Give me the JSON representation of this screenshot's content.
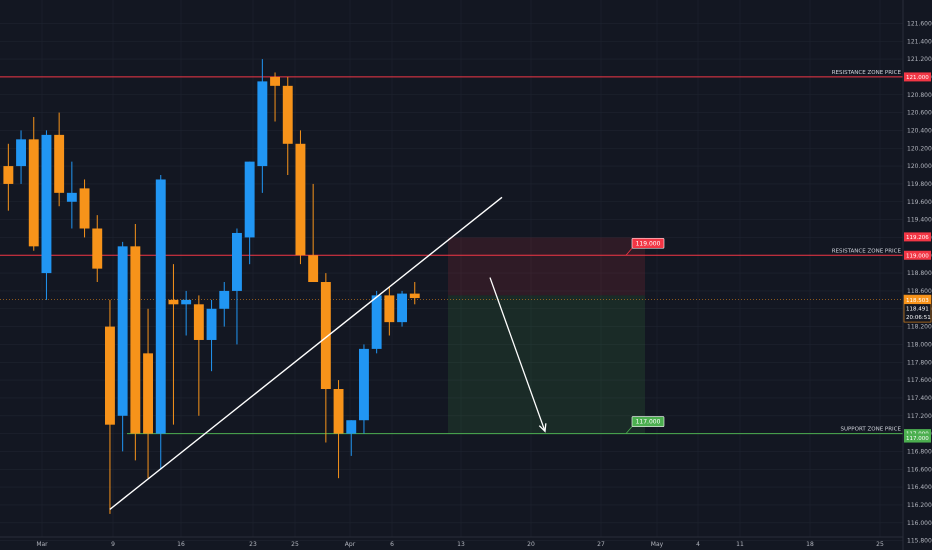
{
  "chart_data": {
    "type": "candlestick",
    "y_axis": {
      "min": 115.7,
      "max": 121.7,
      "ticks": [
        "121.600",
        "121.400",
        "121.200",
        "121.000",
        "120.800",
        "120.600",
        "120.400",
        "120.200",
        "120.000",
        "119.800",
        "119.600",
        "119.400",
        "119.200",
        "119.000",
        "118.800",
        "118.600",
        "118.400",
        "118.200",
        "118.000",
        "117.800",
        "117.600",
        "117.400",
        "117.200",
        "117.000",
        "116.800",
        "116.600",
        "116.400",
        "116.200",
        "116.000",
        "115.800"
      ]
    },
    "x_axis": {
      "labels": [
        "Mar",
        "9",
        "16",
        "23",
        "25",
        "Apr",
        "6",
        "13",
        "20",
        "27",
        "May",
        "4",
        "11",
        "18",
        "25"
      ]
    },
    "candles": [
      {
        "o": 120.0,
        "h": 120.25,
        "l": 119.5,
        "c": 119.8
      },
      {
        "o": 120.0,
        "h": 120.4,
        "l": 119.8,
        "c": 120.3
      },
      {
        "o": 120.3,
        "h": 120.55,
        "l": 119.05,
        "c": 119.1
      },
      {
        "o": 118.8,
        "h": 120.4,
        "l": 118.5,
        "c": 120.35
      },
      {
        "o": 120.35,
        "h": 120.6,
        "l": 119.55,
        "c": 119.7
      },
      {
        "o": 119.6,
        "h": 120.05,
        "l": 119.3,
        "c": 119.7
      },
      {
        "o": 119.75,
        "h": 119.85,
        "l": 119.2,
        "c": 119.3
      },
      {
        "o": 119.3,
        "h": 119.45,
        "l": 118.7,
        "c": 118.85
      },
      {
        "o": 118.2,
        "h": 118.5,
        "l": 116.1,
        "c": 117.1
      },
      {
        "o": 117.2,
        "h": 119.15,
        "l": 116.8,
        "c": 119.1
      },
      {
        "o": 119.1,
        "h": 119.35,
        "l": 116.7,
        "c": 117.0
      },
      {
        "o": 117.9,
        "h": 118.4,
        "l": 116.5,
        "c": 117.0
      },
      {
        "o": 117.0,
        "h": 119.9,
        "l": 116.6,
        "c": 119.85
      },
      {
        "o": 118.5,
        "h": 118.9,
        "l": 117.1,
        "c": 118.45
      },
      {
        "o": 118.45,
        "h": 118.6,
        "l": 118.1,
        "c": 118.5
      },
      {
        "o": 118.45,
        "h": 118.55,
        "l": 117.2,
        "c": 118.05
      },
      {
        "o": 118.05,
        "h": 118.5,
        "l": 117.7,
        "c": 118.4
      },
      {
        "o": 118.4,
        "h": 118.7,
        "l": 118.2,
        "c": 118.6
      },
      {
        "o": 118.6,
        "h": 119.3,
        "l": 118.0,
        "c": 119.25
      },
      {
        "o": 119.2,
        "h": 120.05,
        "l": 118.9,
        "c": 120.05
      },
      {
        "o": 120.0,
        "h": 121.2,
        "l": 119.7,
        "c": 120.95
      },
      {
        "o": 121.0,
        "h": 121.05,
        "l": 120.5,
        "c": 120.9
      },
      {
        "o": 120.9,
        "h": 121.0,
        "l": 119.9,
        "c": 120.25
      },
      {
        "o": 120.25,
        "h": 120.4,
        "l": 118.9,
        "c": 119.0
      },
      {
        "o": 119.0,
        "h": 119.8,
        "l": 118.7,
        "c": 118.7
      },
      {
        "o": 118.7,
        "h": 118.8,
        "l": 116.9,
        "c": 117.5
      },
      {
        "o": 117.5,
        "h": 117.6,
        "l": 116.5,
        "c": 117.0
      },
      {
        "o": 117.0,
        "h": 117.15,
        "l": 116.75,
        "c": 117.15
      },
      {
        "o": 117.15,
        "h": 118.0,
        "l": 117.0,
        "c": 117.95
      },
      {
        "o": 117.95,
        "h": 118.6,
        "l": 117.9,
        "c": 118.55
      },
      {
        "o": 118.55,
        "h": 118.65,
        "l": 118.1,
        "c": 118.25
      },
      {
        "o": 118.25,
        "h": 118.6,
        "l": 118.2,
        "c": 118.57
      },
      {
        "o": 118.57,
        "h": 118.7,
        "l": 118.45,
        "c": 118.52
      }
    ],
    "levels": [
      {
        "price": 121.0,
        "label": "RESISTANCE ZONE PRICE",
        "tag": "121.000",
        "color": "#f23645"
      },
      {
        "price": 119.0,
        "label": "RESISTANCE ZONE PRICE",
        "tag": "119.000",
        "color": "#f23645"
      },
      {
        "price": 117.0,
        "label": "SUPPORT ZONE PRICE",
        "tag": "117.000",
        "color": "#4caf50"
      }
    ],
    "current_price": {
      "price": 118.503,
      "label": "118.503",
      "color": "#f7931a"
    },
    "axis_tags": [
      {
        "price": 119.206,
        "text": "119.206",
        "color": "#f23645"
      },
      {
        "price": 116.95,
        "text": "117.000",
        "color": "#4caf50"
      }
    ],
    "price_tag_stack": {
      "lines": [
        "118.503",
        "118.491",
        "20:06:51"
      ],
      "color": "#f7931a"
    },
    "position_box": {
      "entry": 118.55,
      "stop": 119.2,
      "target": 117.0,
      "entry_label": "119.000",
      "target_label": "117.000"
    },
    "trendline": {
      "from_bar": 5,
      "from_price": 116.15,
      "to_bar": 33.5,
      "to_price": 119.65
    },
    "forecast_arrow": {
      "from_bar": 35.5,
      "from_price": 118.75,
      "to_bar": 39.5,
      "to_price": 117.25
    },
    "colors": {
      "up": "#2196f3",
      "down": "#f7931a",
      "background": "#131722",
      "grid": "#1f2430"
    }
  }
}
